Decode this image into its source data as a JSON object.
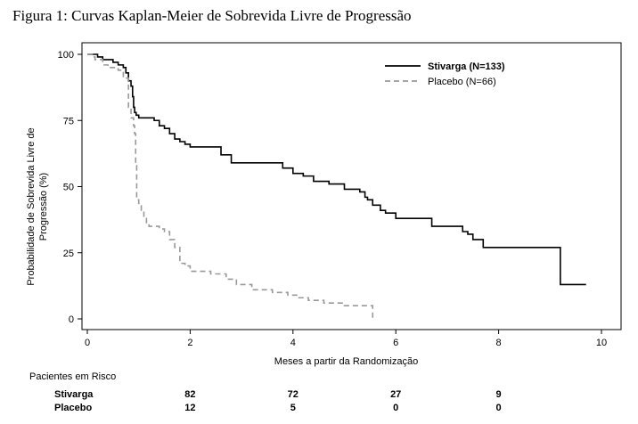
{
  "caption": "Figura 1: Curvas Kaplan-Meier de Sobrevida Livre de Progressão",
  "chart_data": {
    "type": "line",
    "title": "",
    "xlabel": "Meses a partir da Randomização",
    "ylabel_lines": [
      "Probabilidade de Sobrevida Livre de",
      "Progressão (%)"
    ],
    "xlim": [
      0,
      10
    ],
    "ylim": [
      0,
      100
    ],
    "xticks": [
      0,
      2,
      4,
      6,
      8,
      10
    ],
    "yticks": [
      0,
      25,
      50,
      75,
      100
    ],
    "grid": false,
    "legend_position": "top-right",
    "series": [
      {
        "name": "Stivarga (N=133)",
        "color": "#000000",
        "dash": "solid",
        "x": [
          0,
          0.2,
          0.3,
          0.5,
          0.6,
          0.7,
          0.75,
          0.8,
          0.85,
          0.88,
          0.9,
          0.92,
          0.95,
          1.0,
          1.1,
          1.3,
          1.4,
          1.5,
          1.6,
          1.7,
          1.8,
          1.9,
          2.0,
          2.3,
          2.6,
          2.8,
          3.5,
          3.8,
          4.0,
          4.2,
          4.4,
          4.7,
          5.0,
          5.2,
          5.3,
          5.4,
          5.45,
          5.55,
          5.7,
          5.8,
          6.0,
          6.5,
          6.7,
          7.2,
          7.3,
          7.4,
          7.5,
          7.7,
          9.2,
          9.2,
          9.7
        ],
        "y": [
          100,
          99,
          98,
          97,
          96,
          95,
          93,
          90,
          88,
          84,
          80,
          78,
          77,
          76,
          76,
          75,
          73,
          72,
          70,
          68,
          67,
          66,
          65,
          65,
          62,
          59,
          59,
          57,
          55,
          54,
          52,
          51,
          49,
          49,
          48,
          46,
          45,
          43,
          41,
          40,
          38,
          38,
          35,
          35,
          33,
          32,
          30,
          27,
          27,
          13,
          13
        ]
      },
      {
        "name": "Placebo (N=66)",
        "color": "#999999",
        "dash": "dashed",
        "x": [
          0,
          0.1,
          0.15,
          0.3,
          0.4,
          0.6,
          0.7,
          0.8,
          0.85,
          0.9,
          0.92,
          0.94,
          0.96,
          1.0,
          1.05,
          1.1,
          1.15,
          1.2,
          1.3,
          1.4,
          1.5,
          1.6,
          1.7,
          1.8,
          1.9,
          2.0,
          2.2,
          2.4,
          2.7,
          2.9,
          3.2,
          3.6,
          3.9,
          4.1,
          4.3,
          4.6,
          5.0,
          5.3,
          5.55,
          5.55
        ],
        "y": [
          100,
          99,
          98,
          96,
          95,
          94,
          91,
          80,
          76,
          73,
          70,
          58,
          45,
          43,
          41,
          38,
          36,
          35,
          35,
          34,
          33,
          30,
          27,
          21,
          20,
          18,
          18,
          17,
          15,
          13,
          11,
          10,
          9,
          8,
          7,
          6,
          5,
          5,
          5,
          0
        ]
      }
    ],
    "risk_table": {
      "title": "Pacientes em Risco",
      "times": [
        2,
        4,
        6,
        8
      ],
      "rows": [
        {
          "label": "Stivarga",
          "values": [
            "82",
            "72",
            "27",
            "9"
          ]
        },
        {
          "label": "Placebo",
          "values": [
            "12",
            "5",
            "0",
            "0"
          ]
        }
      ]
    }
  }
}
